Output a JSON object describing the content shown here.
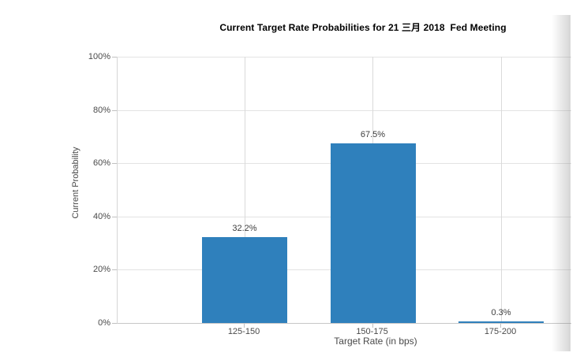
{
  "chart": {
    "title": "Current Target Rate Probabilities for 21 三月 2018  Fed Meeting"
  },
  "chart_data": {
    "type": "bar",
    "title": "Current Target Rate Probabilities for 21 三月 2018  Fed Meeting",
    "categories": [
      "125-150",
      "150-175",
      "175-200"
    ],
    "values": [
      32.2,
      67.5,
      0.3
    ],
    "data_labels": [
      "32.2%",
      "67.5%",
      "0.3%"
    ],
    "xlabel": "Target Rate (in bps)",
    "ylabel": "Current Probability",
    "ylim": [
      0,
      100
    ],
    "yticks": [
      "0%",
      "20%",
      "40%",
      "60%",
      "80%",
      "100%"
    ],
    "grid": true,
    "legend": false,
    "bar_color": "#2f80bc"
  },
  "colors": {
    "bar": "#2f80bc",
    "gridline": "#e3e3e3",
    "axis_line": "#c6c6c6",
    "tick_text": "#4a4a4a",
    "title_text": "#000000"
  }
}
